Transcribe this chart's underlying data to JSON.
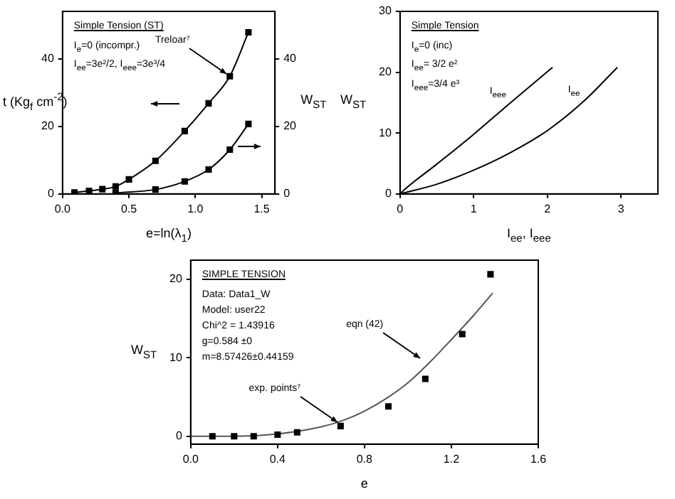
{
  "chart_data": [
    {
      "type": "line",
      "xlabel": "e=ln(λ$_{1}$)",
      "ylabel": "t (Kg$_{f}$ cm$^{-2}$)",
      "y2label": "W$_{ST}$",
      "xlim": [
        0,
        1.6
      ],
      "xticks": [
        {
          "value": 0,
          "label": "0.0"
        },
        {
          "value": 0.5,
          "label": "0.5"
        },
        {
          "value": 1,
          "label": "1.0"
        },
        {
          "value": 1.5,
          "label": "1.5"
        }
      ],
      "ylim": [
        0,
        54
      ],
      "yticks": [
        0,
        20,
        40
      ],
      "y2lim": [
        0,
        54
      ],
      "y2ticks": [
        0,
        20,
        40
      ],
      "legend": false,
      "grid": false,
      "series": [
        {
          "color": "#000000",
          "marker": "square",
          "line_style": "solid",
          "axis": "y",
          "x": [
            0.09,
            0.2,
            0.3,
            0.4,
            0.5,
            0.7,
            0.92,
            1.1,
            1.26,
            1.4
          ],
          "values": [
            0.4,
            0.9,
            1.4,
            2.2,
            4.3,
            9.8,
            18.6,
            26.8,
            34.8,
            47.8
          ]
        },
        {
          "color": "#000000",
          "marker": "square",
          "line_style": "solid",
          "axis": "y2",
          "x": [
            0.4,
            0.7,
            0.92,
            1.1,
            1.26,
            1.4
          ],
          "values": [
            0.3,
            1.3,
            3.7,
            7.2,
            13.1,
            20.7
          ]
        }
      ],
      "annotations": [
        "Simple Tension (ST)",
        "I$_{e}$=0 (incompr.)",
        "I$_{ee}$=3e²/2, I$_{eee}$=3e³/4",
        {
          "text": "Treloar⁷",
          "x": 1.26,
          "y": 34.8
        }
      ]
    },
    {
      "type": "line",
      "xlabel": "I$_{ee}$, I$_{eee}$",
      "ylabel": "W$_{ST}$",
      "xlim": [
        0,
        3.5
      ],
      "xticks": [
        0,
        1,
        2,
        3
      ],
      "ylim": [
        0,
        30
      ],
      "yticks": [
        0,
        10,
        20,
        30
      ],
      "legend": false,
      "grid": false,
      "series": [
        {
          "name": "I$_{eee}$",
          "color": "#000000",
          "marker": "none",
          "line_style": "solid",
          "x": [
            0,
            0.05,
            0.5,
            1,
            1.5,
            2.07
          ],
          "values": [
            0,
            0.6,
            4.9,
            9.8,
            15,
            20.8
          ]
        },
        {
          "name": "I$_{ee}$",
          "color": "#000000",
          "marker": "none",
          "line_style": "solid",
          "x": [
            0,
            0.5,
            1,
            1.5,
            2,
            2.5,
            2.95
          ],
          "values": [
            0,
            1.6,
            3.9,
            6.8,
            10.4,
            15.3,
            20.8
          ]
        }
      ],
      "annotations": [
        "Simple Tension",
        "I$_{e}$=0 (inc)",
        "I$_{ee}$= 3/2 e²",
        "I$_{eee}$=3/4 e³"
      ]
    },
    {
      "type": "scatter",
      "xlabel": "e",
      "ylabel": "W$_{ST}$",
      "xlim": [
        0,
        1.6
      ],
      "xticks": [
        {
          "value": 0,
          "label": "0.0"
        },
        {
          "value": 0.4,
          "label": "0.4"
        },
        {
          "value": 0.8,
          "label": "0.8"
        },
        {
          "value": 1.2,
          "label": "1.2"
        },
        {
          "value": 1.6,
          "label": "1.6"
        }
      ],
      "ylim": [
        -1,
        22.4
      ],
      "yticks": [
        0,
        10,
        20
      ],
      "legend": false,
      "grid": false,
      "series": [
        {
          "color": "#000000",
          "marker": "square",
          "x": [
            0.1,
            0.2,
            0.29,
            0.4,
            0.49,
            0.69,
            0.91,
            1.08,
            1.25,
            1.38
          ],
          "values": [
            0,
            0,
            0,
            0.2,
            0.5,
            1.3,
            3.8,
            7.3,
            13,
            20.6
          ]
        },
        {
          "type": "line",
          "color": "#555555",
          "marker": "none",
          "line_style": "solid",
          "x": [
            0,
            0.2,
            0.4,
            0.6,
            0.7,
            0.8,
            0.9,
            1,
            1.1,
            1.2,
            1.3,
            1.39
          ],
          "values": [
            0,
            0,
            0.3,
            1.2,
            2,
            3.2,
            4.8,
            6.8,
            9.4,
            12.3,
            15.3,
            18.2
          ]
        }
      ],
      "annotations": [
        "SIMPLE TENSION",
        "Data: Data1_W",
        "Model: user22",
        "Chi^2 = 1.43916",
        "g=0.584   ±0",
        "m=8.57426±0.44159",
        {
          "text": "eqn (42)",
          "x": 1.07,
          "y": 9.6
        },
        {
          "text": "exp. points⁷",
          "x": 0.69,
          "y": 1.4
        }
      ]
    }
  ]
}
